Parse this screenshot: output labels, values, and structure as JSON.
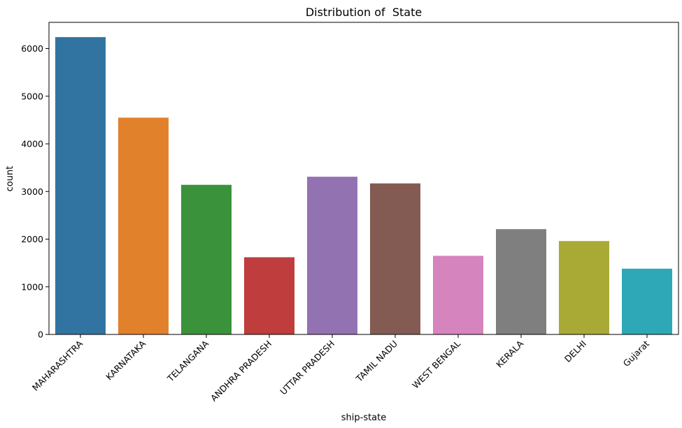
{
  "chart_data": {
    "type": "bar",
    "title": "Distribution of  State",
    "xlabel": "ship-state",
    "ylabel": "count",
    "categories": [
      "MAHARASHTRA",
      "KARNATAKA",
      "TELANGANA",
      "ANDHRA PRADESH",
      "UTTAR PRADESH",
      "TAMIL NADU",
      "WEST BENGAL",
      "KERALA",
      "DELHI",
      "Gujarat"
    ],
    "values": [
      6240,
      4550,
      3140,
      1620,
      3310,
      3170,
      1650,
      2210,
      1960,
      1380
    ],
    "colors": [
      "#3274a1",
      "#e1812c",
      "#3a923a",
      "#c03d3e",
      "#9372b2",
      "#845b53",
      "#d684bd",
      "#7f7f7f",
      "#a9aa35",
      "#2ea8b7"
    ],
    "ylim": [
      0,
      6550
    ],
    "yticks": [
      0,
      1000,
      2000,
      3000,
      4000,
      5000,
      6000
    ],
    "grid": false,
    "legend": false
  }
}
